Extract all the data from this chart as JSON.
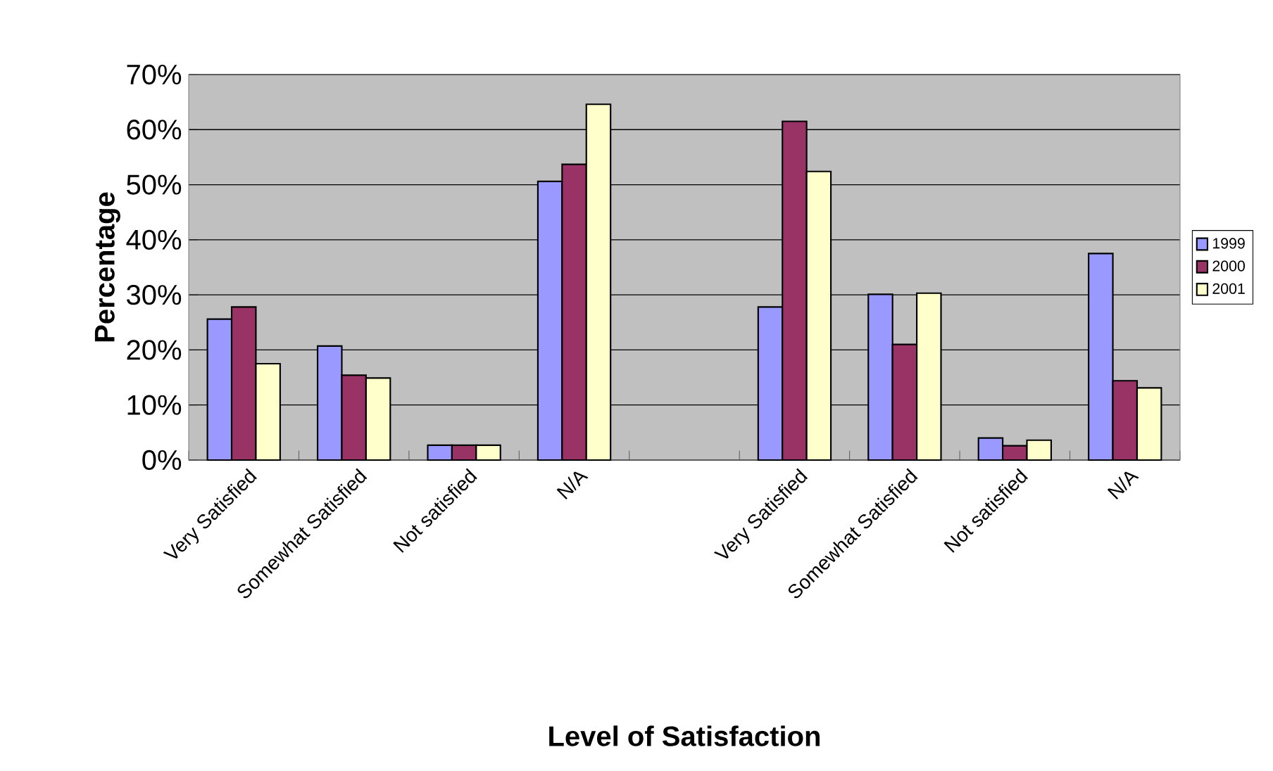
{
  "chart_data": {
    "type": "bar",
    "xlabel": "Level of Satisfaction",
    "ylabel": "Percentage",
    "categories": [
      "Very Satisfied",
      "Somewhat Satisfied",
      "Not satisfied",
      "N/A",
      null,
      "Very Satisfied",
      "Somewhat Satisfied",
      "Not satisfied",
      "N/A"
    ],
    "series": [
      {
        "name": "1999",
        "color": "#9999ff",
        "values": [
          25.6,
          20.7,
          2.7,
          50.6,
          null,
          27.8,
          30.1,
          4.0,
          37.5
        ]
      },
      {
        "name": "2000",
        "color": "#993366",
        "values": [
          27.8,
          15.4,
          2.7,
          53.7,
          null,
          61.5,
          21.0,
          2.6,
          14.4
        ]
      },
      {
        "name": "2001",
        "color": "#ffffcc",
        "values": [
          17.5,
          14.9,
          2.7,
          64.6,
          null,
          52.4,
          30.3,
          3.6,
          13.1
        ]
      }
    ],
    "ylim": [
      0,
      70
    ],
    "yticks": [
      {
        "value": 0,
        "label": "0%"
      },
      {
        "value": 10,
        "label": "10%"
      },
      {
        "value": 20,
        "label": "20%"
      },
      {
        "value": 30,
        "label": "30%"
      },
      {
        "value": 40,
        "label": "40%"
      },
      {
        "value": 50,
        "label": "50%"
      },
      {
        "value": 60,
        "label": "60%"
      },
      {
        "value": 70,
        "label": "70%"
      }
    ],
    "grid": "y",
    "legend": "right"
  }
}
